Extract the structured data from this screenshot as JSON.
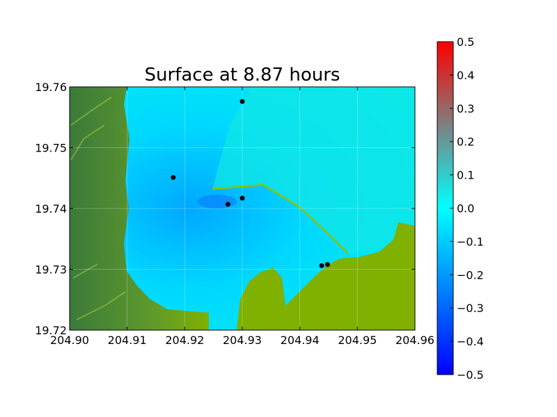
{
  "chart_data": {
    "type": "heatmap",
    "title": "Surface at 8.87 hours",
    "xlabel": "",
    "ylabel": "",
    "xlim": [
      204.9,
      204.96
    ],
    "ylim": [
      19.72,
      19.76
    ],
    "x_ticks": [
      "204.90",
      "204.91",
      "204.92",
      "204.93",
      "204.94",
      "204.95",
      "204.96"
    ],
    "y_ticks": [
      "19.72",
      "19.73",
      "19.74",
      "19.75",
      "19.76"
    ],
    "colorbar": {
      "range": [
        -0.5,
        0.5
      ],
      "ticks": [
        "0.5",
        "0.4",
        "0.3",
        "0.2",
        "0.1",
        "0.0",
        "−0.1",
        "−0.2",
        "−0.3",
        "−0.4",
        "−0.5"
      ],
      "colors": [
        "#0000ff",
        "#00ffff",
        "#ff0000"
      ]
    },
    "grid": true,
    "points": [
      {
        "x": 204.93,
        "y": 19.7576
      },
      {
        "x": 204.918,
        "y": 19.7451
      },
      {
        "x": 204.93,
        "y": 19.7417
      },
      {
        "x": 204.9275,
        "y": 19.7407
      },
      {
        "x": 204.9438,
        "y": 19.7306
      },
      {
        "x": 204.9448,
        "y": 19.7308
      }
    ],
    "colors": {
      "land": "#7fb000",
      "land_high": "#3f7f3f",
      "water": "#00e8ff",
      "water_low": "#00b4ff",
      "marker": "#000000"
    }
  }
}
